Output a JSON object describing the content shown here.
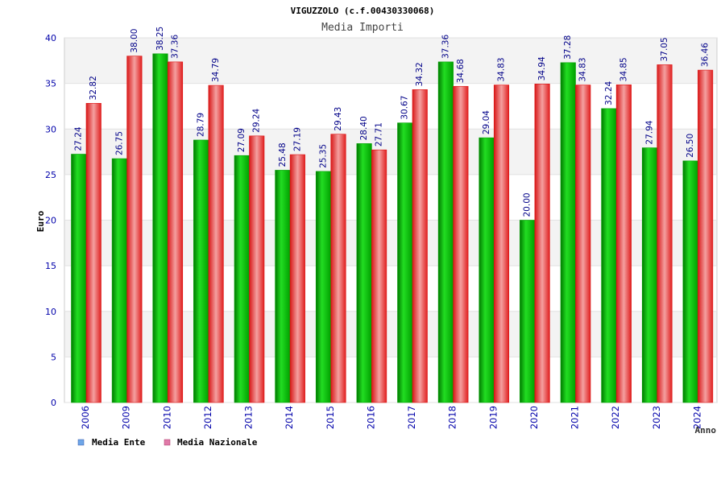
{
  "chart_data": {
    "type": "bar",
    "title": "VIGUZZOLO (c.f.00430330068)",
    "subtitle": "Media Importi",
    "xlabel": "Anno",
    "ylabel": "Euro",
    "ylim": [
      0,
      40
    ],
    "yticks": [
      "0",
      "5",
      "10",
      "15",
      "20",
      "25",
      "30",
      "35",
      "40"
    ],
    "grid": true,
    "legend_position": "bottom-left",
    "categories": [
      "2006",
      "2009",
      "2010",
      "2012",
      "2013",
      "2014",
      "2015",
      "2016",
      "2017",
      "2018",
      "2019",
      "2020",
      "2021",
      "2022",
      "2023",
      "2024"
    ],
    "series": [
      {
        "name": "Media Ente",
        "legend_color": "#6ea6e8",
        "color": "#00bb00",
        "values": [
          27.24,
          26.75,
          38.25,
          28.79,
          27.09,
          25.48,
          25.35,
          28.4,
          30.67,
          37.36,
          29.04,
          20.0,
          37.28,
          32.24,
          27.94,
          26.5
        ],
        "labels": [
          "27.24",
          "26.75",
          "38.25",
          "28.79",
          "27.09",
          "25.48",
          "25.35",
          "28.40",
          "30.67",
          "37.36",
          "29.04",
          "20.00",
          "37.28",
          "32.24",
          "27.94",
          "26.50"
        ]
      },
      {
        "name": "Media Nazionale",
        "legend_color": "#e07aa8",
        "color": "#ee2222",
        "values": [
          32.82,
          38.0,
          37.36,
          34.79,
          29.24,
          27.19,
          29.43,
          27.71,
          34.32,
          34.68,
          34.83,
          34.94,
          34.83,
          34.85,
          37.05,
          36.46
        ],
        "labels": [
          "32.82",
          "38.00",
          "37.36",
          "34.79",
          "29.24",
          "27.19",
          "29.43",
          "27.71",
          "34.32",
          "34.68",
          "34.83",
          "34.94",
          "34.83",
          "34.85",
          "37.05",
          "36.46"
        ]
      }
    ]
  }
}
